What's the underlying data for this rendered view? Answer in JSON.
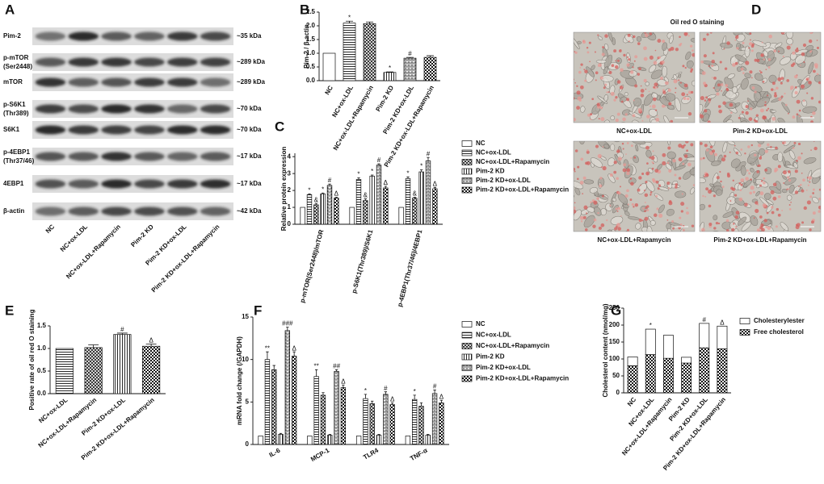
{
  "blot": {
    "panel": "A",
    "lanes": [
      "NC",
      "NC+ox-LDL",
      "NC+ox-LDL+Rapamycin",
      "Pim-2 KD",
      "Pim-2 KD+ox-LDL",
      "Pim-2 KD+ox-LDL+Rapamycin"
    ],
    "rows": [
      {
        "name": "Pim-2",
        "size": "~35 kDa"
      },
      {
        "name": "p-mTOR",
        "site": "(Ser2448)",
        "size": "~289 kDa"
      },
      {
        "name": "mTOR",
        "size": "~289 kDa"
      },
      {
        "name": "p-S6K1",
        "site": "(Thr389)",
        "size": "~70 kDa"
      },
      {
        "name": "S6K1",
        "size": "~70 kDa"
      },
      {
        "name": "p-4EBP1",
        "site": "(Thr37/46)",
        "size": "~17 kDa"
      },
      {
        "name": "4EBP1",
        "size": "~17 kDa"
      },
      {
        "name": "β-actin",
        "size": "~42 kDa"
      }
    ]
  },
  "images": {
    "panel": "D",
    "title": "Oil red O staining",
    "captions": [
      "NC+ox-LDL",
      "Pim-2 KD+ox-LDL",
      "NC+ox-LDL+Rapamycin",
      "Pim-2 KD+ox-LDL+Rapamycin"
    ]
  },
  "chart_data": [
    {
      "panel": "B",
      "type": "bar",
      "y_label": "Pim-2 / β-actin",
      "categories": [
        "NC",
        "NC+ox-LDL",
        "NC+ox-LDL+Rapamycin",
        "Pim-2 KD",
        "Pim-2 KD+ox-LDL",
        "Pim-2 KD+ox-LDL+Rapamycin"
      ],
      "values": [
        1.0,
        2.1,
        2.08,
        0.3,
        0.82,
        0.85
      ],
      "errors": [
        0,
        0.07,
        0.06,
        0.02,
        0.03,
        0.06
      ],
      "annotations": [
        null,
        "*",
        null,
        "*",
        "#",
        null
      ],
      "patterns": [
        "none",
        "hline",
        "cross",
        "vline",
        "grid",
        "check"
      ],
      "ylim": [
        0,
        2.5
      ],
      "yticks": [
        {
          "value": 0,
          "label": "0.0"
        },
        0.5,
        {
          "value": 1,
          "label": "1.0"
        },
        1.5,
        {
          "value": 2,
          "label": "2.0"
        },
        2.5
      ]
    },
    {
      "panel": "C",
      "type": "bar",
      "y_label": "Relative protein expression",
      "legend": "right",
      "categories": [
        "p-mTOR(Ser2448)/mTOR",
        "p-S6K1(Thr389)/S6K1",
        "p-4EBP1(Thr37/46)/4EBP1"
      ],
      "series": [
        {
          "name": "NC",
          "pattern": "none",
          "values": [
            1,
            1,
            1
          ],
          "errors": [
            0,
            0,
            0
          ]
        },
        {
          "name": "NC+ox-LDL",
          "pattern": "hline",
          "values": [
            1.75,
            2.65,
            2.7
          ],
          "errors": [
            0.05,
            0.1,
            0.1
          ],
          "annotations": [
            "*",
            "*",
            "*"
          ]
        },
        {
          "name": "NC+ox-LDL+Rapamycin",
          "pattern": "cross",
          "values": [
            1.15,
            1.4,
            1.55
          ],
          "errors": [
            0.08,
            0.1,
            0.05
          ],
          "annotations": [
            "&",
            "&",
            "&"
          ]
        },
        {
          "name": "Pim-2 KD",
          "pattern": "vline",
          "values": [
            1.8,
            2.85,
            3.1
          ],
          "errors": [
            0.05,
            0.06,
            0.12
          ],
          "annotations": [
            "*",
            "*",
            "*"
          ]
        },
        {
          "name": "Pim-2 KD+ox-LDL",
          "pattern": "grid",
          "values": [
            2.3,
            3.5,
            3.75
          ],
          "errors": [
            0.08,
            0.08,
            0.2
          ],
          "annotations": [
            "#",
            "#",
            "#"
          ]
        },
        {
          "name": "Pim-2 KD+ox-LDL+Rapamycin",
          "pattern": "check",
          "values": [
            1.55,
            2.15,
            2.1
          ],
          "errors": [
            0.05,
            0.1,
            0.08
          ],
          "annotations": [
            "Δ",
            "Δ",
            "Δ"
          ]
        }
      ],
      "ylim": [
        0,
        4.2
      ],
      "yticks": [
        0,
        1,
        2,
        3,
        4
      ]
    },
    {
      "panel": "E",
      "type": "bar",
      "y_label": "Positive rate of oil red O staining",
      "categories": [
        "NC+ox-LDL",
        "NC+ox-LDL+Rapamycin",
        "Pim-2 KD+ox-LDL",
        "Pim-2 KD+ox-LDL+Rapamycin"
      ],
      "values": [
        1.0,
        1.02,
        1.31,
        1.05
      ],
      "errors": [
        0,
        0.06,
        0.03,
        0.05
      ],
      "annotations": [
        null,
        null,
        "#",
        "Δ"
      ],
      "patterns": [
        "hline",
        "cross",
        "vline",
        "check"
      ],
      "ylim": [
        0,
        1.5
      ],
      "yticks": [
        {
          "value": 0,
          "label": "0.0"
        },
        0.5,
        {
          "value": 1,
          "label": "1.0"
        },
        1.5
      ]
    },
    {
      "panel": "F",
      "type": "bar",
      "y_label": "mRNA fold change (/GAPDH)",
      "legend": "right",
      "categories": [
        "IL-6",
        "MCP-1",
        "TLR4",
        "TNF-α"
      ],
      "series": [
        {
          "name": "NC",
          "pattern": "none",
          "values": [
            1,
            1,
            1,
            1
          ],
          "errors": [
            0,
            0,
            0,
            0
          ]
        },
        {
          "name": "NC+ox-LDL",
          "pattern": "hline",
          "values": [
            10.0,
            8.0,
            5.4,
            5.3
          ],
          "errors": [
            0.9,
            0.8,
            0.5,
            0.5
          ],
          "annotations": [
            "**",
            "**",
            "*",
            "*"
          ]
        },
        {
          "name": "NC+ox-LDL+Rapamycin",
          "pattern": "cross",
          "values": [
            8.8,
            5.8,
            4.8,
            4.5
          ],
          "errors": [
            0.5,
            0.3,
            0.3,
            0.4
          ]
        },
        {
          "name": "Pim-2 KD",
          "pattern": "vline",
          "values": [
            1.2,
            1.1,
            1.1,
            1.1
          ],
          "errors": [
            0.1,
            0.1,
            0.1,
            0.1
          ]
        },
        {
          "name": "Pim-2 KD+ox-LDL",
          "pattern": "grid",
          "values": [
            13.4,
            8.6,
            5.9,
            6.0
          ],
          "errors": [
            0.4,
            0.2,
            0.3,
            0.4
          ],
          "annotations": [
            "###",
            "##",
            "#",
            "#"
          ]
        },
        {
          "name": "Pim-2 KD+ox-LDL+Rapamycin",
          "pattern": "check",
          "values": [
            10.4,
            6.7,
            4.7,
            4.9
          ],
          "errors": [
            0.5,
            0.3,
            0.2,
            0.3
          ],
          "annotations": [
            "Δ",
            "Δ",
            "Δ",
            "Δ"
          ]
        }
      ],
      "ylim": [
        0,
        15
      ],
      "yticks": [
        0,
        5,
        10,
        15
      ]
    },
    {
      "panel": "G",
      "type": "bar",
      "stacked": true,
      "legend": "right",
      "y_label": "Cholesterol content (nmol/mg)",
      "categories": [
        "NC",
        "NC+ox-LDL",
        "NC+ox-LDL+Rapamycin",
        "Pim-2 KD",
        "Pim-2 KD+ox-LDL",
        "Pim-2 KD+ox-LDL+Rapamycin"
      ],
      "series": [
        {
          "name": "Free cholesterol",
          "pattern": "check",
          "values": [
            80,
            113,
            102,
            88,
            133,
            130
          ]
        },
        {
          "name": "Cholesterylester",
          "pattern": "none",
          "values": [
            26,
            75,
            68,
            17,
            72,
            67
          ]
        }
      ],
      "annotations": [
        null,
        "*",
        null,
        null,
        "#",
        "Δ"
      ],
      "ylim": [
        0,
        250
      ],
      "yticks": [
        0,
        50,
        100,
        150,
        200,
        250
      ]
    }
  ]
}
